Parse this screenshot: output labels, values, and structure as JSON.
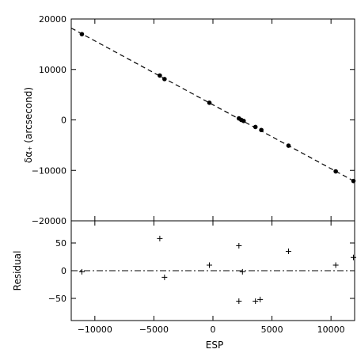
{
  "chart_data": [
    {
      "panel": "top",
      "type": "scatter",
      "xlabel": "",
      "ylabel": "δα₊ (arcsecond)",
      "xlim": [
        -12000,
        12000
      ],
      "ylim": [
        -20000,
        20000
      ],
      "yticks": [
        -20000,
        -10000,
        0,
        10000,
        20000
      ],
      "ytick_labels": [
        "−20000",
        "−10000",
        "0",
        "10000",
        "20000"
      ],
      "points": [
        {
          "x": -11100,
          "y": 17000
        },
        {
          "x": -4500,
          "y": 8800
        },
        {
          "x": -4100,
          "y": 8100
        },
        {
          "x": -300,
          "y": 3400
        },
        {
          "x": 2200,
          "y": 300
        },
        {
          "x": 2400,
          "y": 0
        },
        {
          "x": 2600,
          "y": -200
        },
        {
          "x": 3600,
          "y": -1400
        },
        {
          "x": 4100,
          "y": -2000
        },
        {
          "x": 6400,
          "y": -5100
        },
        {
          "x": 10400,
          "y": -10200
        },
        {
          "x": 11900,
          "y": -12100
        }
      ],
      "fit_line": {
        "style": "dashed",
        "x": [
          -12000,
          12000
        ],
        "y": [
          18200,
          -12200
        ]
      }
    },
    {
      "panel": "bottom",
      "type": "scatter",
      "xlabel": "ESP",
      "ylabel": "Residual",
      "xlim": [
        -12000,
        12000
      ],
      "ylim": [
        -90,
        90
      ],
      "xticks": [
        -10000,
        -5000,
        0,
        5000,
        10000
      ],
      "xtick_labels": [
        "−10000",
        "−5000",
        "0",
        "5000",
        "10000"
      ],
      "yticks": [
        -50,
        0,
        50
      ],
      "ytick_labels": [
        "−50",
        "0",
        "50"
      ],
      "marker": "plus",
      "points": [
        {
          "x": -11100,
          "y": -2
        },
        {
          "x": -4500,
          "y": 58
        },
        {
          "x": -4100,
          "y": -12
        },
        {
          "x": -300,
          "y": 10
        },
        {
          "x": 2200,
          "y": 45
        },
        {
          "x": 2200,
          "y": -55
        },
        {
          "x": 2500,
          "y": -2
        },
        {
          "x": 3600,
          "y": -55
        },
        {
          "x": 4000,
          "y": -52
        },
        {
          "x": 6400,
          "y": 35
        },
        {
          "x": 10400,
          "y": 10
        },
        {
          "x": 11900,
          "y": 24
        }
      ],
      "reference_line": {
        "style": "dash-dot",
        "y": 0
      }
    }
  ]
}
